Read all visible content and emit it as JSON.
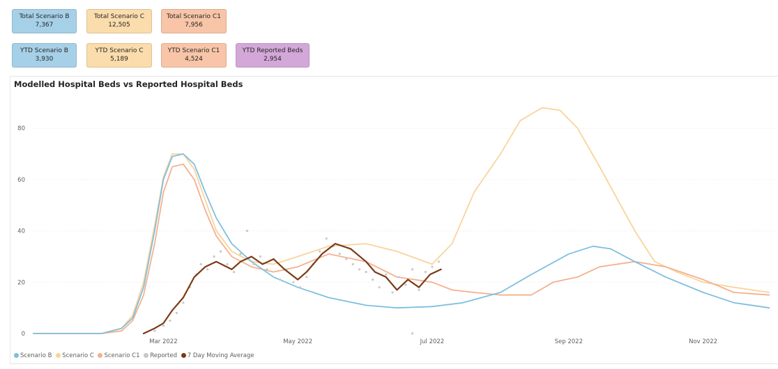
{
  "cards": [
    {
      "label": "Total Scenario B",
      "value": "7,367",
      "color": "#a6d0e8"
    },
    {
      "label": "Total Scenario C",
      "value": "12,505",
      "color": "#fbdcac"
    },
    {
      "label": "Total Scenario C1",
      "value": "7,956",
      "color": "#f8c5a8"
    },
    {
      "label": "YTD Scenario B",
      "value": "3,930",
      "color": "#a6d0e8"
    },
    {
      "label": "YTD Scenario C",
      "value": "5,189",
      "color": "#fbdcac"
    },
    {
      "label": "YTD Scenario C1",
      "value": "4,524",
      "color": "#f8c5a8"
    },
    {
      "label": "YTD Reported Beds",
      "value": "2,954",
      "color": "#d3a8d8"
    }
  ],
  "chart_data": {
    "type": "line",
    "title": "Modelled Hospital Beds vs Reported Hospital Beds",
    "xlabel": "",
    "ylabel": "",
    "x_ticks": [
      "Mar 2022",
      "May 2022",
      "Jul 2022",
      "Sep 2022",
      "Nov 2022"
    ],
    "y_ticks": [
      0,
      20,
      40,
      60,
      80
    ],
    "ylim": [
      0,
      92
    ],
    "grid": true,
    "legend_position": "bottom-left",
    "series": [
      {
        "name": "Scenario B",
        "color": "#7fbfdf",
        "points": [
          [
            "2022-01-01",
            0
          ],
          [
            "2022-02-01",
            0
          ],
          [
            "2022-02-10",
            2
          ],
          [
            "2022-02-15",
            6
          ],
          [
            "2022-02-20",
            18
          ],
          [
            "2022-02-25",
            40
          ],
          [
            "2022-03-01",
            60
          ],
          [
            "2022-03-05",
            69
          ],
          [
            "2022-03-10",
            70
          ],
          [
            "2022-03-15",
            66
          ],
          [
            "2022-03-20",
            55
          ],
          [
            "2022-03-25",
            45
          ],
          [
            "2022-04-01",
            35
          ],
          [
            "2022-04-10",
            28
          ],
          [
            "2022-04-20",
            22
          ],
          [
            "2022-05-01",
            18
          ],
          [
            "2022-05-15",
            14
          ],
          [
            "2022-06-01",
            11
          ],
          [
            "2022-06-15",
            10
          ],
          [
            "2022-07-01",
            10.5
          ],
          [
            "2022-07-15",
            12
          ],
          [
            "2022-08-01",
            16
          ],
          [
            "2022-08-15",
            23
          ],
          [
            "2022-09-01",
            31
          ],
          [
            "2022-09-12",
            34
          ],
          [
            "2022-09-20",
            33
          ],
          [
            "2022-10-01",
            28
          ],
          [
            "2022-10-15",
            22
          ],
          [
            "2022-11-01",
            16
          ],
          [
            "2022-11-15",
            12
          ],
          [
            "2022-12-01",
            10
          ]
        ]
      },
      {
        "name": "Scenario C",
        "color": "#f9d49a",
        "points": [
          [
            "2022-01-01",
            0
          ],
          [
            "2022-02-01",
            0
          ],
          [
            "2022-02-10",
            2
          ],
          [
            "2022-02-15",
            7
          ],
          [
            "2022-02-20",
            20
          ],
          [
            "2022-02-25",
            42
          ],
          [
            "2022-03-01",
            61
          ],
          [
            "2022-03-05",
            70
          ],
          [
            "2022-03-10",
            70
          ],
          [
            "2022-03-15",
            64
          ],
          [
            "2022-03-20",
            52
          ],
          [
            "2022-03-25",
            40
          ],
          [
            "2022-04-01",
            32
          ],
          [
            "2022-04-10",
            28
          ],
          [
            "2022-04-20",
            27
          ],
          [
            "2022-05-01",
            30
          ],
          [
            "2022-05-15",
            34
          ],
          [
            "2022-06-01",
            35
          ],
          [
            "2022-06-15",
            32
          ],
          [
            "2022-07-01",
            27
          ],
          [
            "2022-07-10",
            35
          ],
          [
            "2022-07-20",
            55
          ],
          [
            "2022-08-01",
            70
          ],
          [
            "2022-08-10",
            83
          ],
          [
            "2022-08-20",
            88
          ],
          [
            "2022-08-28",
            87
          ],
          [
            "2022-09-05",
            80
          ],
          [
            "2022-09-15",
            65
          ],
          [
            "2022-10-01",
            40
          ],
          [
            "2022-10-10",
            28
          ],
          [
            "2022-10-20",
            24
          ],
          [
            "2022-11-01",
            20
          ],
          [
            "2022-11-15",
            18
          ],
          [
            "2022-12-01",
            16
          ]
        ]
      },
      {
        "name": "Scenario C1",
        "color": "#f4b08e",
        "points": [
          [
            "2022-01-01",
            0
          ],
          [
            "2022-02-01",
            0
          ],
          [
            "2022-02-10",
            1
          ],
          [
            "2022-02-15",
            5
          ],
          [
            "2022-02-20",
            15
          ],
          [
            "2022-02-25",
            35
          ],
          [
            "2022-03-01",
            55
          ],
          [
            "2022-03-05",
            65
          ],
          [
            "2022-03-10",
            66
          ],
          [
            "2022-03-15",
            60
          ],
          [
            "2022-03-20",
            48
          ],
          [
            "2022-03-25",
            38
          ],
          [
            "2022-04-01",
            30
          ],
          [
            "2022-04-10",
            26
          ],
          [
            "2022-04-20",
            24
          ],
          [
            "2022-05-01",
            26
          ],
          [
            "2022-05-15",
            31
          ],
          [
            "2022-06-01",
            28
          ],
          [
            "2022-06-15",
            22
          ],
          [
            "2022-07-01",
            20
          ],
          [
            "2022-07-10",
            17
          ],
          [
            "2022-07-20",
            16
          ],
          [
            "2022-08-01",
            15
          ],
          [
            "2022-08-15",
            15
          ],
          [
            "2022-08-25",
            20
          ],
          [
            "2022-09-05",
            22
          ],
          [
            "2022-09-15",
            26
          ],
          [
            "2022-10-01",
            28
          ],
          [
            "2022-10-15",
            26
          ],
          [
            "2022-11-01",
            21
          ],
          [
            "2022-11-15",
            16
          ],
          [
            "2022-12-01",
            15
          ]
        ]
      },
      {
        "name": "7 Day Moving Average",
        "color": "#7b3a16",
        "points": [
          [
            "2022-02-20",
            0
          ],
          [
            "2022-02-25",
            2
          ],
          [
            "2022-03-01",
            4
          ],
          [
            "2022-03-05",
            9
          ],
          [
            "2022-03-10",
            14
          ],
          [
            "2022-03-15",
            22
          ],
          [
            "2022-03-20",
            26
          ],
          [
            "2022-03-25",
            28
          ],
          [
            "2022-04-01",
            25
          ],
          [
            "2022-04-05",
            28
          ],
          [
            "2022-04-10",
            30
          ],
          [
            "2022-04-15",
            27
          ],
          [
            "2022-04-20",
            29
          ],
          [
            "2022-04-25",
            25
          ],
          [
            "2022-05-01",
            21
          ],
          [
            "2022-05-05",
            24
          ],
          [
            "2022-05-12",
            31
          ],
          [
            "2022-05-18",
            35
          ],
          [
            "2022-05-25",
            33
          ],
          [
            "2022-06-01",
            28
          ],
          [
            "2022-06-05",
            24
          ],
          [
            "2022-06-10",
            22
          ],
          [
            "2022-06-15",
            17
          ],
          [
            "2022-06-20",
            21
          ],
          [
            "2022-06-25",
            18
          ],
          [
            "2022-06-30",
            23
          ],
          [
            "2022-07-05",
            25
          ]
        ]
      }
    ],
    "reported": {
      "name": "Reported",
      "color": "#c8c8c8",
      "points": [
        [
          "2022-02-25",
          1
        ],
        [
          "2022-03-01",
          3
        ],
        [
          "2022-03-04",
          5
        ],
        [
          "2022-03-07",
          8
        ],
        [
          "2022-03-10",
          12
        ],
        [
          "2022-03-13",
          18
        ],
        [
          "2022-03-16",
          23
        ],
        [
          "2022-03-18",
          27
        ],
        [
          "2022-03-21",
          25
        ],
        [
          "2022-03-24",
          30
        ],
        [
          "2022-03-27",
          32
        ],
        [
          "2022-03-30",
          27
        ],
        [
          "2022-04-02",
          24
        ],
        [
          "2022-04-05",
          31
        ],
        [
          "2022-04-08",
          40
        ],
        [
          "2022-04-11",
          27
        ],
        [
          "2022-04-14",
          30
        ],
        [
          "2022-04-17",
          25
        ],
        [
          "2022-04-20",
          29
        ],
        [
          "2022-04-23",
          21
        ],
        [
          "2022-04-26",
          25
        ],
        [
          "2022-04-29",
          20
        ],
        [
          "2022-05-02",
          18
        ],
        [
          "2022-05-05",
          22
        ],
        [
          "2022-05-08",
          27
        ],
        [
          "2022-05-11",
          32
        ],
        [
          "2022-05-14",
          37
        ],
        [
          "2022-05-17",
          34
        ],
        [
          "2022-05-20",
          31
        ],
        [
          "2022-05-23",
          29
        ],
        [
          "2022-05-26",
          27
        ],
        [
          "2022-05-29",
          25
        ],
        [
          "2022-06-01",
          24
        ],
        [
          "2022-06-04",
          21
        ],
        [
          "2022-06-07",
          18
        ],
        [
          "2022-06-10",
          23
        ],
        [
          "2022-06-13",
          16
        ],
        [
          "2022-06-16",
          22
        ],
        [
          "2022-06-19",
          19
        ],
        [
          "2022-06-22",
          25
        ],
        [
          "2022-06-25",
          17
        ],
        [
          "2022-06-28",
          24
        ],
        [
          "2022-07-01",
          26
        ],
        [
          "2022-07-04",
          28
        ],
        [
          "2022-06-22",
          0
        ]
      ]
    }
  }
}
